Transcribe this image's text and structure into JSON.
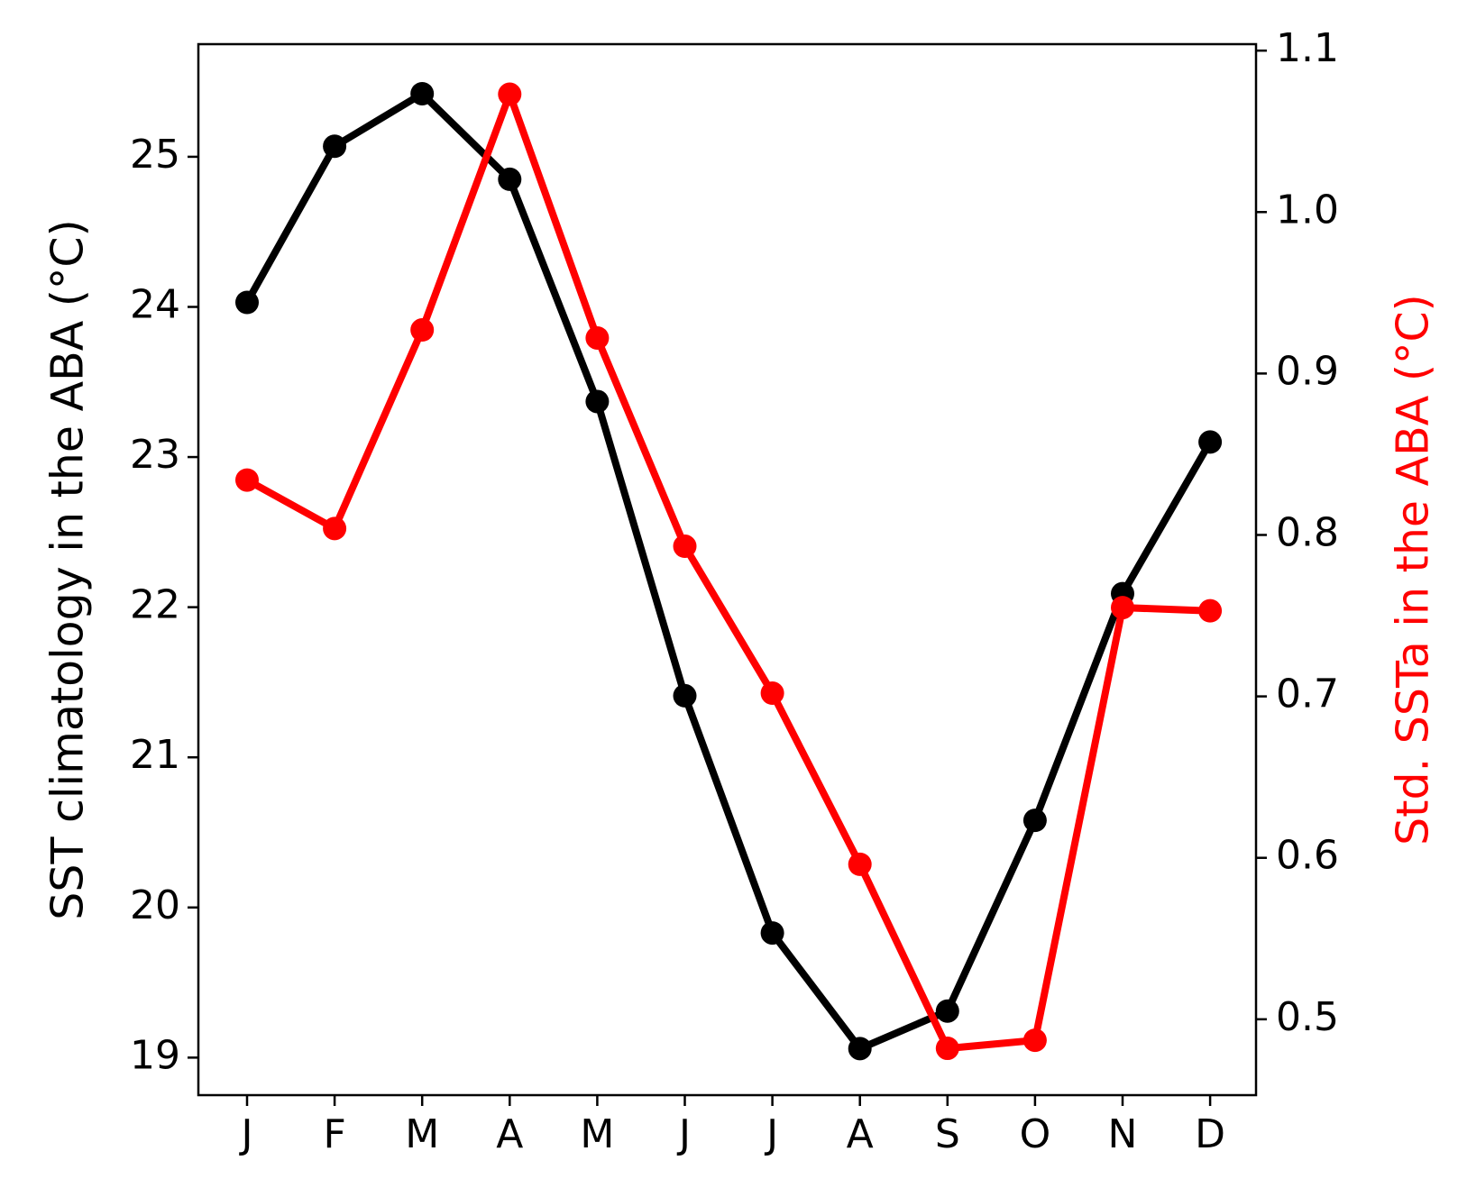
{
  "chart_data": {
    "type": "line",
    "categories": [
      "J",
      "F",
      "M",
      "A",
      "M",
      "J",
      "J",
      "A",
      "S",
      "O",
      "N",
      "D"
    ],
    "ylabel": "SST climatology in the ABA (°C)",
    "ylabel_right": "Std. SSTa in the ABA (°C)",
    "y_left": {
      "lim": [
        18.75,
        25.75
      ],
      "ticks": [
        19,
        20,
        21,
        22,
        23,
        24,
        25
      ],
      "tick_labels": [
        "19",
        "20",
        "21",
        "22",
        "23",
        "24",
        "25"
      ]
    },
    "y_right": {
      "lim": [
        0.453,
        1.104
      ],
      "ticks": [
        0.5,
        0.6,
        0.7,
        0.8,
        0.9,
        1.0,
        1.1
      ],
      "tick_labels": [
        "0.5",
        "0.6",
        "0.7",
        "0.8",
        "0.9",
        "1.0",
        "1.1"
      ]
    },
    "grid": false,
    "series": [
      {
        "axis": "left",
        "color": "#000000",
        "marker": "circle",
        "values": [
          24.03,
          25.07,
          25.42,
          24.85,
          23.37,
          21.41,
          19.83,
          19.06,
          19.31,
          20.58,
          22.09,
          23.1
        ]
      },
      {
        "axis": "right",
        "color": "#ff0000",
        "marker": "circle",
        "values": [
          0.834,
          0.804,
          0.927,
          1.073,
          0.922,
          0.793,
          0.702,
          0.596,
          0.482,
          0.487,
          0.755,
          0.753
        ]
      }
    ]
  }
}
